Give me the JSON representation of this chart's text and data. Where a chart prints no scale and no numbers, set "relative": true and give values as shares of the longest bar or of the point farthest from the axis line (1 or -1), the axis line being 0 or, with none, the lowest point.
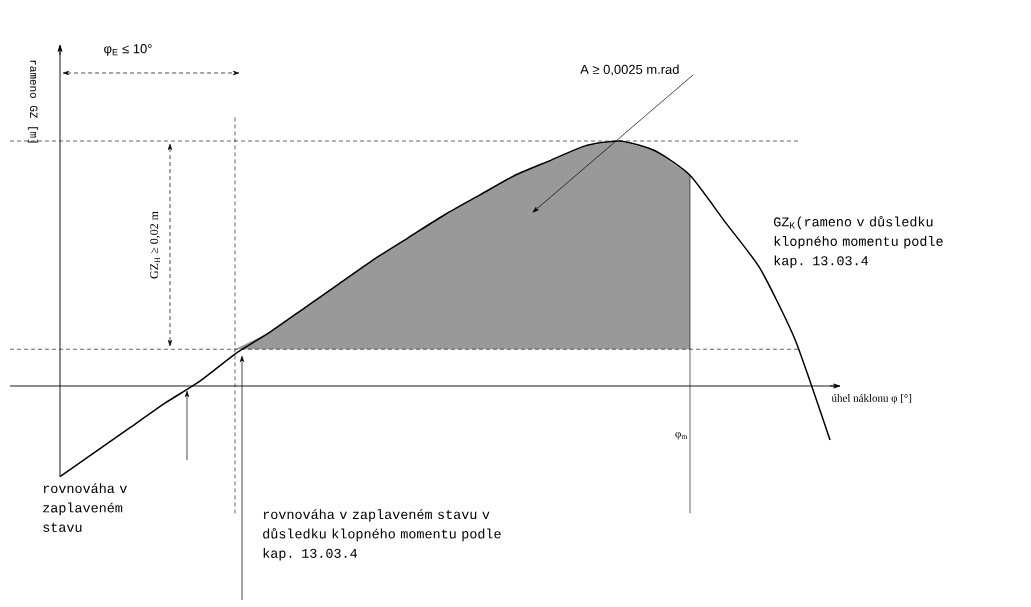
{
  "chart_data": {
    "type": "line",
    "relative": true,
    "marker": "none",
    "categories": [
      null,
      null,
      null,
      null,
      null,
      null,
      null,
      null,
      null,
      null,
      null,
      null,
      null,
      null,
      null,
      null,
      null,
      null,
      null,
      null,
      null,
      null,
      null
    ],
    "xlabel": "úhel náklonu φ [°]",
    "ylabel": "rameno GZ [m]",
    "series": [
      {
        "color": "#000000",
        "line_style": "solid",
        "values": [
          -0.37,
          -0.27,
          -0.17,
          -0.07,
          0.02,
          0.13,
          0.22,
          0.32,
          0.42,
          0.52,
          0.61,
          0.7,
          0.78,
          0.86,
          0.92,
          0.98,
          1.0,
          0.96,
          0.86,
          0.67,
          0.48,
          0.19,
          -0.22
        ],
        "lower": [
          null,
          null,
          null,
          null,
          null,
          0.15,
          0.15,
          0.15,
          0.15,
          0.15,
          0.15,
          0.15,
          0.15,
          0.15,
          0.15,
          0.15,
          0.15,
          0.15,
          0.15,
          null,
          null,
          null,
          null
        ],
        "upper": [
          null,
          null,
          null,
          null,
          null,
          0.15,
          0.22,
          0.32,
          0.42,
          0.52,
          0.61,
          0.7,
          0.78,
          0.86,
          0.92,
          0.98,
          1.0,
          0.96,
          0.86,
          null,
          null,
          null,
          null
        ]
      }
    ],
    "ref_lines": [
      {
        "axis": "y",
        "value": 1,
        "line_style": "dashed"
      },
      {
        "axis": "y",
        "value": 0.15,
        "line_style": "dashed"
      }
    ],
    "annotations": [
      "φ$_{E}$ ≤ 10°",
      "GZ$_{H}$ ≥ 0,02 m",
      "A ≥ 0,0025 m.rad",
      "GZ$_{K}$(rameno v důsledku klopného momentu podle kap. 13.03.4",
      "rovnováha v zaplaveném stavu",
      "rovnováha v zaplaveném stavu v důsledku klopného momentu podle kap. 13.03.4",
      "φ$_{m}$"
    ]
  }
}
